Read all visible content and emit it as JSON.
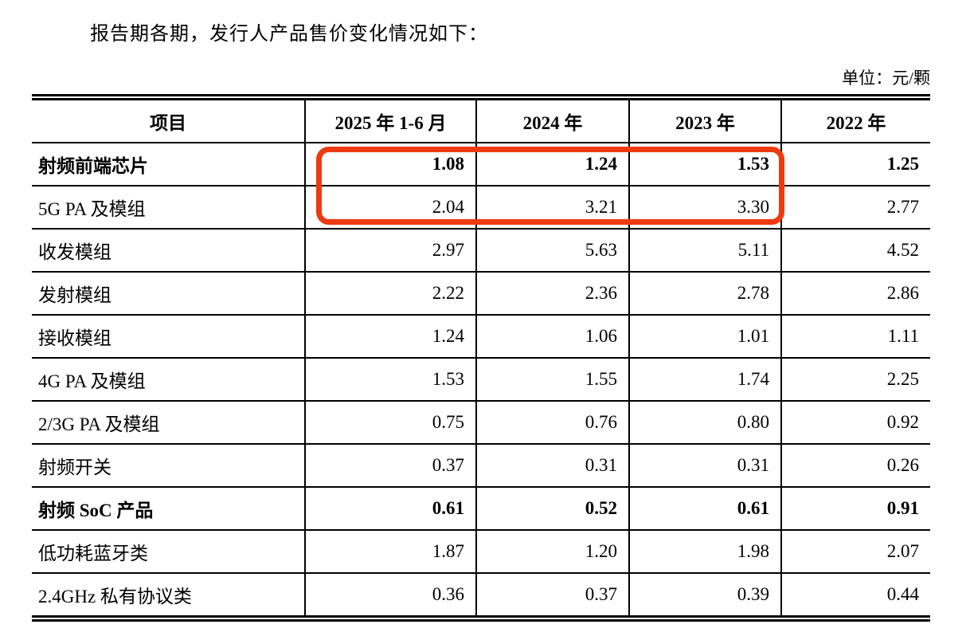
{
  "document": {
    "intro_text": "报告期各期，发行人产品售价变化情况如下：",
    "unit_label": "单位：元/颗"
  },
  "table": {
    "columns": [
      "项目",
      "2025 年 1-6 月",
      "2024 年",
      "2023 年",
      "2022 年"
    ],
    "rows": [
      {
        "label": "射频前端芯片",
        "values": [
          "1.08",
          "1.24",
          "1.53",
          "1.25"
        ],
        "bold": true
      },
      {
        "label": "5G PA 及模组",
        "values": [
          "2.04",
          "3.21",
          "3.30",
          "2.77"
        ],
        "bold": false
      },
      {
        "label": "收发模组",
        "values": [
          "2.97",
          "5.63",
          "5.11",
          "4.52"
        ],
        "bold": false
      },
      {
        "label": "发射模组",
        "values": [
          "2.22",
          "2.36",
          "2.78",
          "2.86"
        ],
        "bold": false
      },
      {
        "label": "接收模组",
        "values": [
          "1.24",
          "1.06",
          "1.01",
          "1.11"
        ],
        "bold": false
      },
      {
        "label": "4G PA 及模组",
        "values": [
          "1.53",
          "1.55",
          "1.74",
          "2.25"
        ],
        "bold": false
      },
      {
        "label": "2/3G PA 及模组",
        "values": [
          "0.75",
          "0.76",
          "0.80",
          "0.92"
        ],
        "bold": false
      },
      {
        "label": "射频开关",
        "values": [
          "0.37",
          "0.31",
          "0.31",
          "0.26"
        ],
        "bold": false
      },
      {
        "label": "射频 SoC 产品",
        "values": [
          "0.61",
          "0.52",
          "0.61",
          "0.91"
        ],
        "bold": true
      },
      {
        "label": "低功耗蓝牙类",
        "values": [
          "1.87",
          "1.20",
          "1.98",
          "2.07"
        ],
        "bold": false
      },
      {
        "label": "2.4GHz 私有协议类",
        "values": [
          "0.36",
          "0.37",
          "0.39",
          "0.44"
        ],
        "bold": false
      }
    ]
  },
  "annotation": {
    "shape": "rounded-rectangle-outline",
    "color": "#ee3a11",
    "highlights_rows": [
      "射频前端芯片",
      "5G PA 及模组"
    ],
    "highlights_columns": [
      "2025 年 1-6 月",
      "2024 年",
      "2023 年"
    ]
  }
}
